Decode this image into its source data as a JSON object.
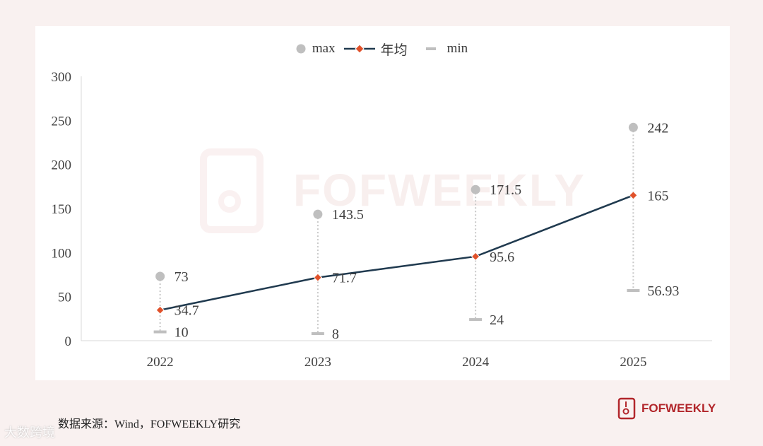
{
  "chart_data": {
    "type": "line",
    "categories": [
      "2022",
      "2023",
      "2024",
      "2025"
    ],
    "series": [
      {
        "name": "max",
        "marker": "circle",
        "color": "#bfbfbf",
        "values": [
          73,
          143.5,
          171.5,
          242
        ]
      },
      {
        "name": "年均",
        "marker": "diamond-line",
        "color": "#e0512a",
        "line_color": "#203a4f",
        "values": [
          34.7,
          71.7,
          95.6,
          165
        ]
      },
      {
        "name": "min",
        "marker": "dash",
        "color": "#bfbfbf",
        "values": [
          10,
          8,
          24,
          56.93
        ]
      }
    ],
    "value_labels": {
      "max": [
        "73",
        "143.5",
        "171.5",
        "242"
      ],
      "avg": [
        "34.7",
        "71.7",
        "95.6",
        "165"
      ],
      "min": [
        "10",
        "8",
        "24",
        "56.93"
      ]
    },
    "y_ticks": [
      "0",
      "50",
      "100",
      "150",
      "200",
      "250",
      "300"
    ],
    "ylim": [
      0,
      300
    ],
    "grid": false,
    "legend_position": "top-center",
    "error_bars": "dotted vertical from min to max"
  },
  "legend": {
    "max_label": "max",
    "avg_label": "年均",
    "min_label": "min"
  },
  "footer": {
    "source": "数据来源：Wind，FOFWEEKLY研究",
    "brand": "FOFWEEKLY"
  },
  "watermark": {
    "text": "FOFWEEKLY"
  },
  "corner": {
    "text": "大数跨境"
  }
}
